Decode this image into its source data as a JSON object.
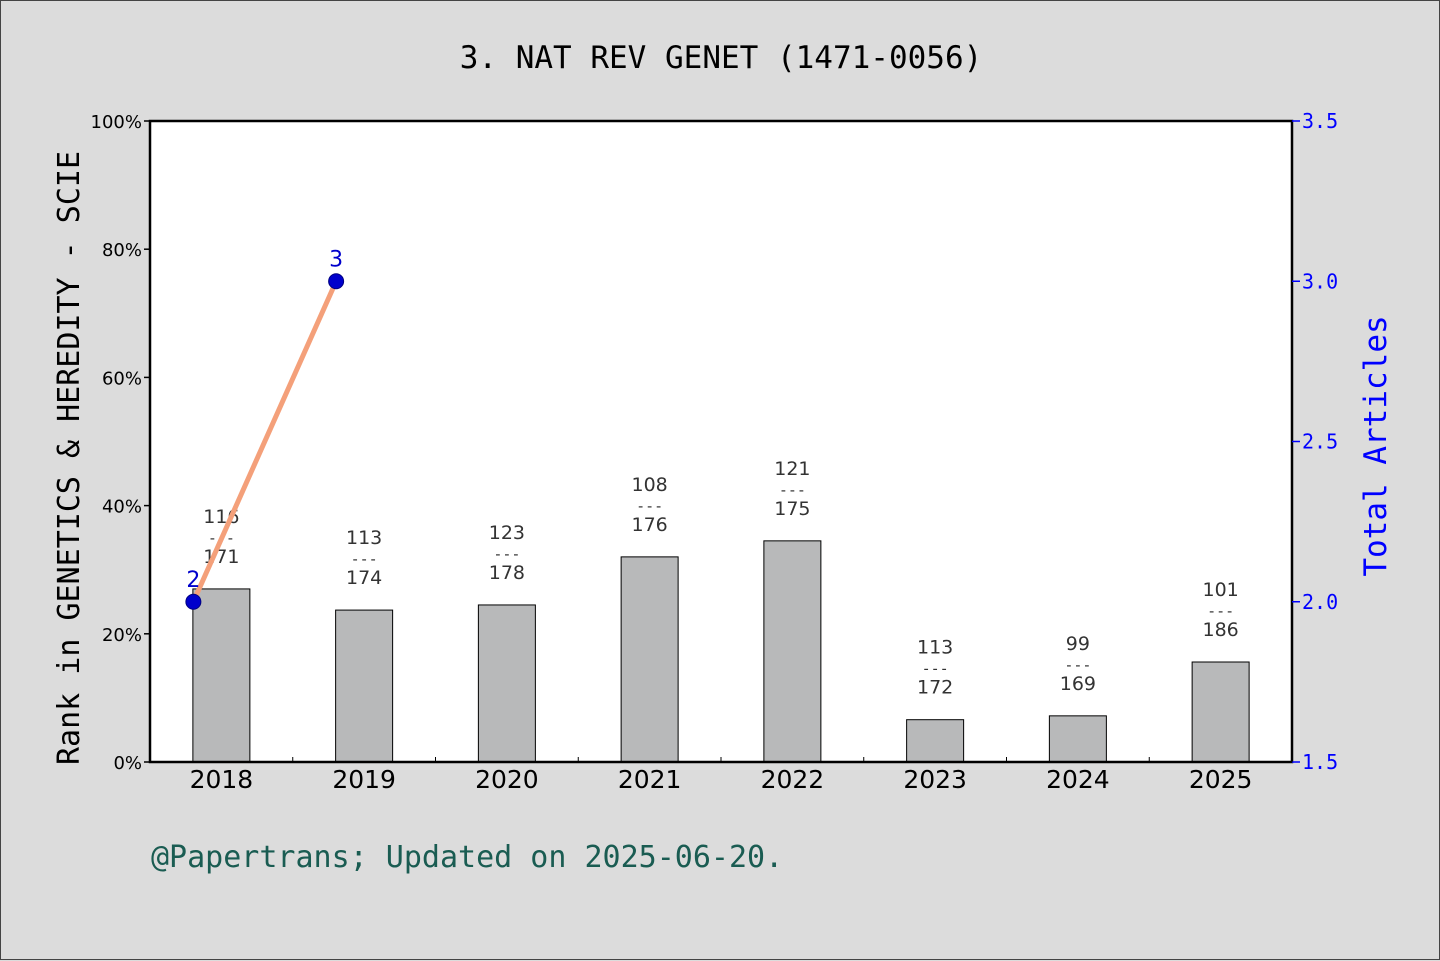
{
  "chart_data": {
    "type": "bar",
    "title": "3. NAT REV GENET (1471-0056)",
    "ylabel": "Rank in GENETICS & HEREDITY - SCIE",
    "y2label": "Total Articles",
    "footer": "@Papertrans; Updated on 2025-06-20.",
    "categories": [
      "2018",
      "2019",
      "2020",
      "2021",
      "2022",
      "2023",
      "2024",
      "2025"
    ],
    "ylim": [
      0,
      100
    ],
    "yticks": [
      "0%",
      "20%",
      "40%",
      "60%",
      "80%",
      "100%"
    ],
    "y2lim": [
      1.5,
      3.5
    ],
    "y2ticks": [
      "1.5",
      "2.0",
      "2.5",
      "3.0",
      "3.5"
    ],
    "series": [
      {
        "values": [
          27.0,
          23.7,
          24.5,
          32.0,
          34.5,
          6.6,
          7.2,
          15.6
        ],
        "ranks": [
          "116",
          "113",
          "123",
          "108",
          "121",
          "113",
          "99",
          "101"
        ],
        "totals": [
          "171",
          "174",
          "178",
          "176",
          "175",
          "172",
          "169",
          "186"
        ],
        "separator": "---",
        "color": "#b8b9ba"
      },
      {
        "axis": "right",
        "x": [
          "2018",
          "2019"
        ],
        "values": [
          2,
          3
        ],
        "labels": [
          "2",
          "3"
        ],
        "line_color": "#f4a07a",
        "marker_color": "#0000cc"
      }
    ],
    "grid": false,
    "colors": {
      "axis_right": "#0000ff",
      "footer": "#1a5c52",
      "background": "#dcdcdc",
      "plot_background": "#ffffff"
    }
  }
}
